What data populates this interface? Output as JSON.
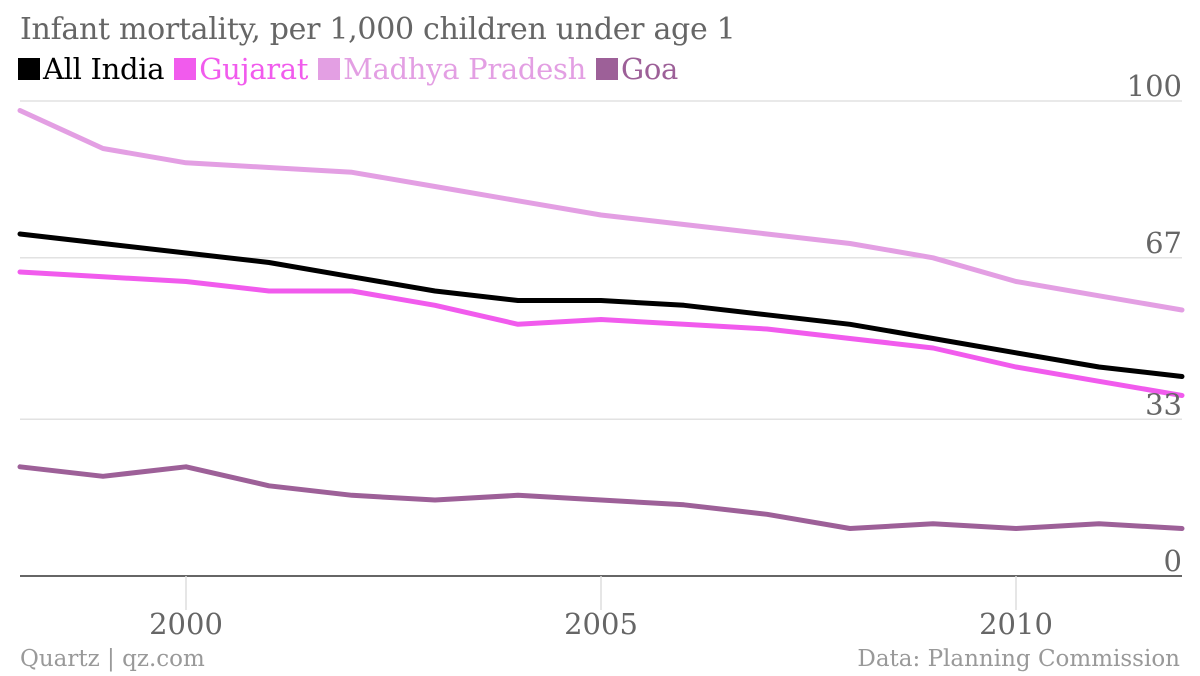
{
  "chart_data": {
    "type": "line",
    "title": "Infant mortality, per 1,000 children under age 1",
    "xlabel": "",
    "ylabel": "",
    "x": [
      1998,
      1999,
      2000,
      2001,
      2002,
      2003,
      2004,
      2005,
      2006,
      2007,
      2008,
      2009,
      2010,
      2011,
      2012
    ],
    "xlim": [
      1998,
      2012
    ],
    "ylim": [
      0,
      100
    ],
    "y_ticks": [
      "0",
      "33",
      "67",
      "100"
    ],
    "y_tick_values": [
      0,
      33,
      67,
      100
    ],
    "x_ticks": [
      "2000",
      "2005",
      "2010"
    ],
    "x_tick_values": [
      2000,
      2005,
      2010
    ],
    "grid": true,
    "legend_position": "top-left",
    "series": [
      {
        "name": "All India",
        "color": "#000000",
        "values": [
          72,
          70,
          68,
          66,
          63,
          60,
          58,
          58,
          57,
          55,
          53,
          50,
          47,
          44,
          42
        ]
      },
      {
        "name": "Gujarat",
        "color": "#f15bed",
        "values": [
          64,
          63,
          62,
          60,
          60,
          57,
          53,
          54,
          53,
          52,
          50,
          48,
          44,
          41,
          38
        ]
      },
      {
        "name": "Madhya Pradesh",
        "color": "#e39fe3",
        "values": [
          98,
          90,
          87,
          86,
          85,
          82,
          79,
          76,
          74,
          72,
          70,
          67,
          62,
          59,
          56
        ]
      },
      {
        "name": "Goa",
        "color": "#9d6098",
        "values": [
          23,
          21,
          23,
          19,
          17,
          16,
          17,
          16,
          15,
          13,
          10,
          11,
          10,
          11,
          10
        ]
      }
    ]
  },
  "footer": {
    "source_left": "Quartz | qz.com",
    "source_right": "Data: Planning Commission"
  }
}
